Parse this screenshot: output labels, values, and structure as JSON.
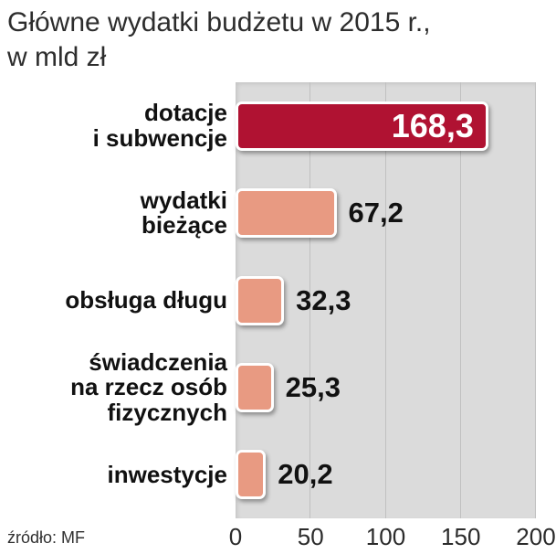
{
  "title": {
    "line1": "Główne wydatki budżetu w 2015 r.,",
    "line2": "w mld zł"
  },
  "source": "źródło: MF",
  "chart_data": {
    "type": "bar",
    "orientation": "horizontal",
    "title": "Główne wydatki budżetu w 2015 r., w mld zł",
    "xlabel": "",
    "ylabel": "",
    "xlim": [
      0,
      200
    ],
    "x_ticks": [
      0,
      50,
      100,
      150,
      200
    ],
    "grid": true,
    "legend": false,
    "categories": [
      "dotacje i subwencje",
      "wydatki bieżące",
      "obsługa długu",
      "świadczenia na rzecz osób fizycznych",
      "inwestycje"
    ],
    "values": [
      168.3,
      67.2,
      32.3,
      25.3,
      20.2
    ],
    "rows": [
      {
        "id": "dotacje-i-subwencje",
        "label_lines": [
          "dotacje",
          "i subwencje"
        ],
        "value": 168.3,
        "value_label": "168,3",
        "color": "#b01232",
        "value_position": "inside"
      },
      {
        "id": "wydatki-biezace",
        "label_lines": [
          "wydatki",
          "bieżące"
        ],
        "value": 67.2,
        "value_label": "67,2",
        "color": "#e89a82",
        "value_position": "outside"
      },
      {
        "id": "obsluga-dlugu",
        "label_lines": [
          "obsługa długu"
        ],
        "value": 32.3,
        "value_label": "32,3",
        "color": "#e89a82",
        "value_position": "outside"
      },
      {
        "id": "swiadczenia-na-rzecz-osob-fizycznych",
        "label_lines": [
          "świadczenia",
          "na rzecz osób",
          "fizycznych"
        ],
        "value": 25.3,
        "value_label": "25,3",
        "color": "#e89a82",
        "value_position": "outside"
      },
      {
        "id": "inwestycje",
        "label_lines": [
          "inwestycje"
        ],
        "value": 20.2,
        "value_label": "20,2",
        "color": "#e89a82",
        "value_position": "outside"
      }
    ],
    "colors": {
      "highlight_bar": "#b01232",
      "bar": "#e89a82",
      "plot_background": "#dbdbdb",
      "gridline": "#c0c0c0"
    }
  }
}
